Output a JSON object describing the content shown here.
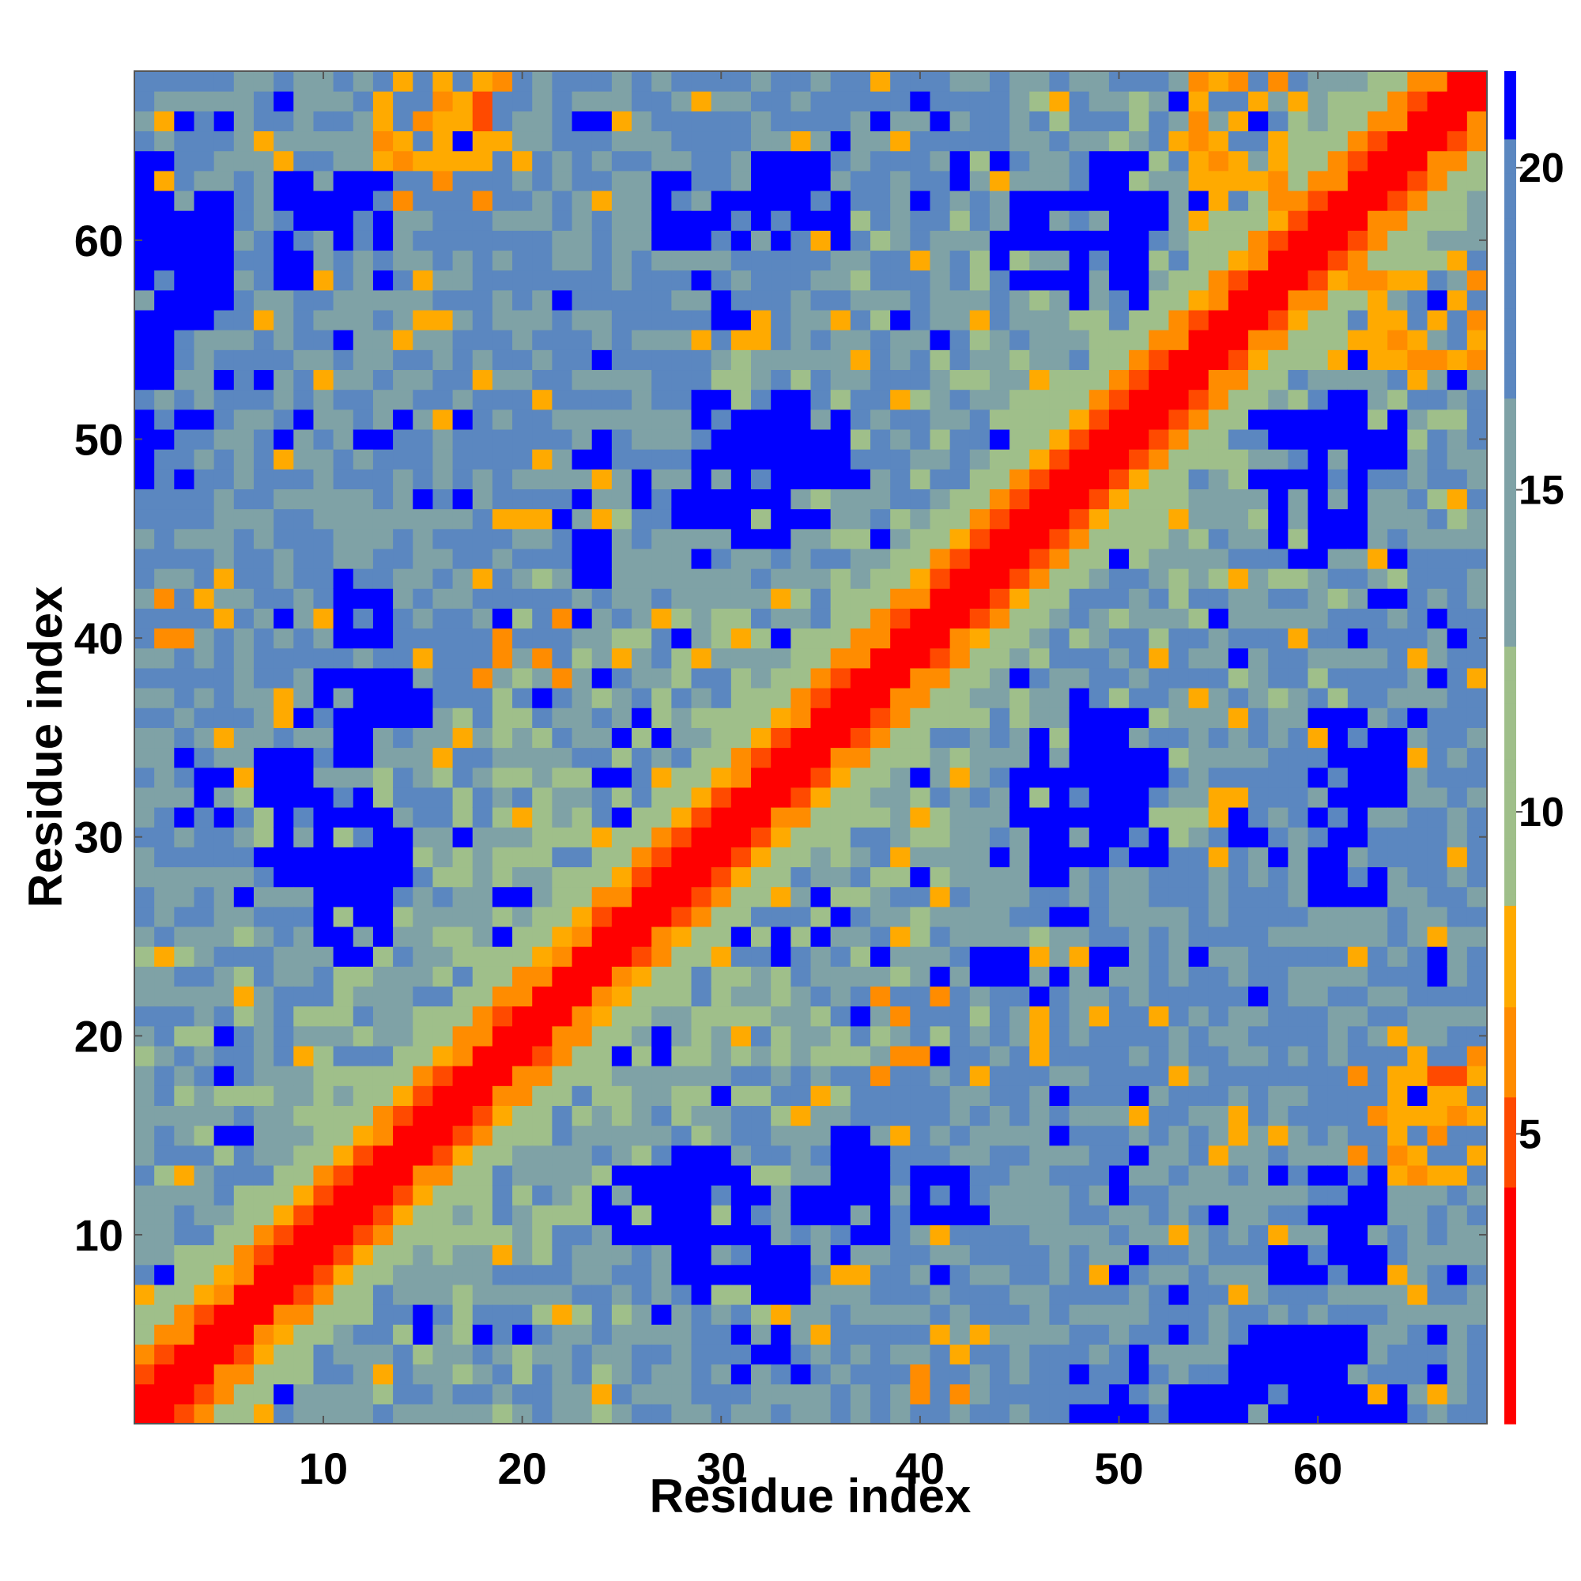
{
  "chart_data": {
    "type": "heatmap",
    "title": "",
    "xlabel": "Residue index",
    "ylabel": "Residue index",
    "n_residues": 68,
    "xlim": [
      0.5,
      68.5
    ],
    "ylim": [
      0.5,
      68.5
    ],
    "x_ticks": [
      10,
      20,
      30,
      40,
      50,
      60
    ],
    "y_ticks": [
      10,
      20,
      30,
      40,
      50,
      60
    ],
    "x_tick_labels": [
      "10",
      "20",
      "30",
      "40",
      "50",
      "60"
    ],
    "y_tick_labels": [
      "10",
      "20",
      "30",
      "40",
      "50",
      "60"
    ],
    "colorbar": {
      "range": [
        0.5,
        21.5
      ],
      "ticks": [
        5,
        10,
        15,
        20
      ],
      "tick_labels": [
        "5",
        "10",
        "15",
        "20"
      ],
      "colors": {
        "red": "#ff0000",
        "red_orange": "#ff4a00",
        "orange": "#ff8c00",
        "amber": "#ffaa00",
        "sage": "#9fbf8a",
        "slate": "#7fa2a6",
        "steel": "#5b87c0",
        "blue": "#0000ff"
      }
    },
    "grid": false,
    "note_values": "symmetric residue-residue distance matrix; values estimated by color"
  }
}
